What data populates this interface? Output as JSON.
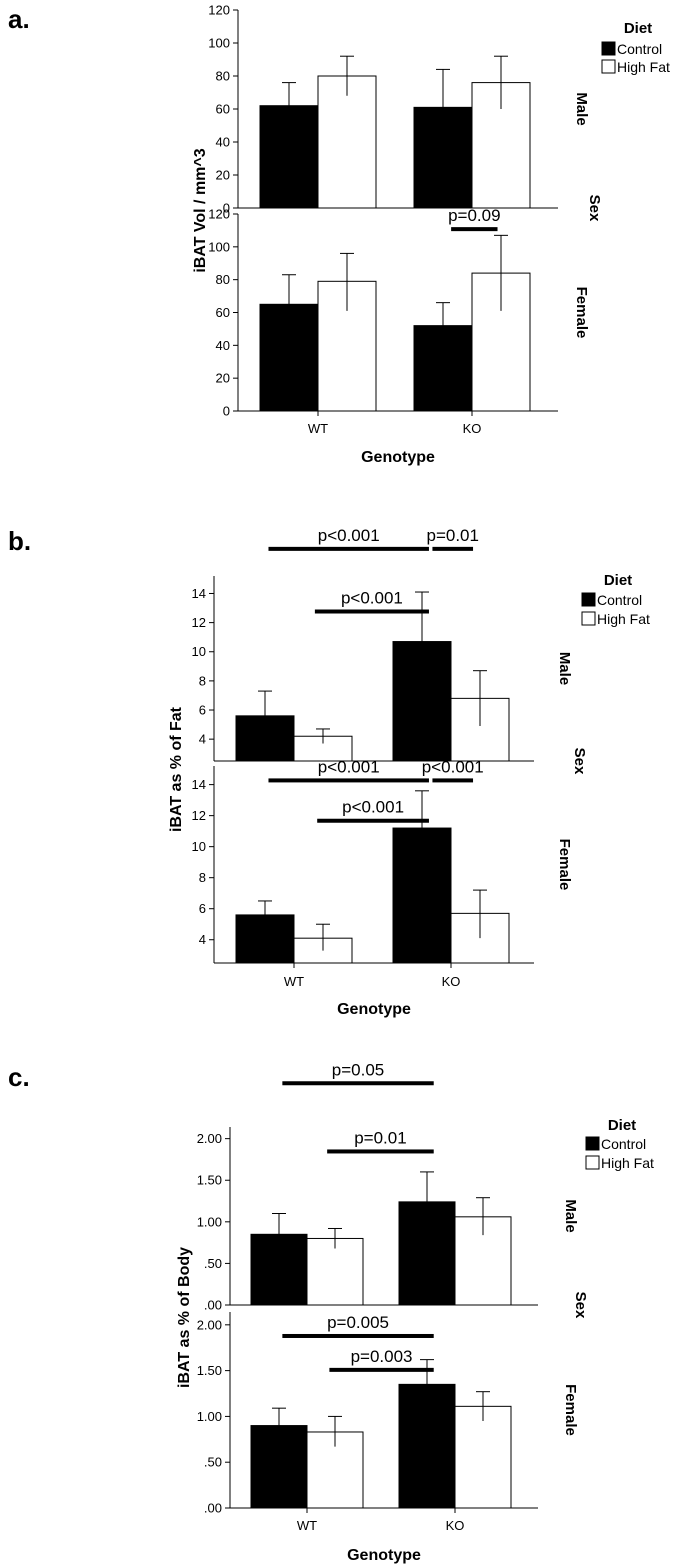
{
  "chart_data": [
    {
      "type": "bar",
      "panel_label": "a.",
      "categories": [
        "WT",
        "KO"
      ],
      "xlabel": "Genotype",
      "ylabel": "iBAT Vol / mm^3",
      "facet_title": "Sex",
      "legend": {
        "title": "Diet",
        "entries": [
          "Control",
          "High Fat"
        ],
        "placement": "top-right"
      },
      "series_colors": [
        "#000000",
        "#ffffff"
      ],
      "facets": [
        {
          "label": "Male",
          "ylim": [
            0,
            120
          ],
          "ticks": [
            0,
            20,
            40,
            60,
            80,
            100,
            120
          ],
          "tick_labels": [
            "0",
            "20",
            "40",
            "60",
            "80",
            "100",
            "120"
          ],
          "series": [
            {
              "name": "Control",
              "values": [
                62,
                61
              ],
              "err": [
                [
                  52,
                  76
                ],
                [
                  42,
                  84
                ]
              ]
            },
            {
              "name": "High Fat",
              "values": [
                80,
                76
              ],
              "err": [
                [
                  68,
                  92
                ],
                [
                  60,
                  92
                ]
              ]
            }
          ],
          "annotations": []
        },
        {
          "label": "Female",
          "ylim": [
            0,
            120
          ],
          "ticks": [
            0,
            20,
            40,
            60,
            80,
            100,
            120
          ],
          "tick_labels": [
            "0",
            "20",
            "40",
            "60",
            "80",
            "100",
            "120"
          ],
          "series": [
            {
              "name": "Control",
              "values": [
                65,
                52
              ],
              "err": [
                [
                  46,
                  83
                ],
                [
                  38,
                  66
                ]
              ]
            },
            {
              "name": "High Fat",
              "values": [
                79,
                84
              ],
              "err": [
                [
                  61,
                  96
                ],
                [
                  61,
                  107
                ]
              ]
            }
          ],
          "annotations": [
            {
              "text": "p=0.09",
              "x1": [
                1,
                -0.18
              ],
              "x2": [
                1,
                0.22
              ],
              "y": 112
            }
          ]
        }
      ]
    },
    {
      "type": "bar",
      "panel_label": "b.",
      "categories": [
        "WT",
        "KO"
      ],
      "xlabel": "Genotype",
      "ylabel": "iBAT as % of Fat",
      "facet_title": "Sex",
      "legend": {
        "title": "Diet",
        "entries": [
          "Control",
          "High Fat"
        ],
        "placement": "top-right"
      },
      "series_colors": [
        "#000000",
        "#ffffff"
      ],
      "facets": [
        {
          "label": "Male",
          "ylim": [
            2.5,
            15.2
          ],
          "ticks": [
            4,
            6,
            8,
            10,
            12,
            14
          ],
          "tick_labels": [
            "4",
            "6",
            "8",
            "10",
            "12",
            "14"
          ],
          "series": [
            {
              "name": "Control",
              "values": [
                5.6,
                10.7
              ],
              "err": [
                [
                  4.0,
                  7.3
                ],
                [
                  7.3,
                  14.1
                ]
              ]
            },
            {
              "name": "High Fat",
              "values": [
                4.2,
                6.8
              ],
              "err": [
                [
                  3.7,
                  4.7
                ],
                [
                  4.9,
                  8.7
                ]
              ]
            }
          ],
          "annotations": [
            {
              "text": "p<0.001",
              "x1": [
                0,
                -0.22
              ],
              "x2": [
                1,
                -0.19
              ],
              "y": 17.2
            },
            {
              "text": "p=0.01",
              "x1": [
                1,
                -0.16
              ],
              "x2": [
                1,
                0.19
              ],
              "y": 17.2
            },
            {
              "text": "p<0.001",
              "x1": [
                0,
                0.18
              ],
              "x2": [
                1,
                -0.19
              ],
              "y": 12.9
            }
          ]
        },
        {
          "label": "Female",
          "ylim": [
            2.5,
            15.2
          ],
          "ticks": [
            4,
            6,
            8,
            10,
            12,
            14
          ],
          "tick_labels": [
            "4",
            "6",
            "8",
            "10",
            "12",
            "14"
          ],
          "series": [
            {
              "name": "Control",
              "values": [
                5.6,
                11.2
              ],
              "err": [
                [
                  4.5,
                  6.5
                ],
                [
                  8.7,
                  13.6
                ]
              ]
            },
            {
              "name": "High Fat",
              "values": [
                4.1,
                5.7
              ],
              "err": [
                [
                  3.3,
                  5.0
                ],
                [
                  4.1,
                  7.2
                ]
              ]
            }
          ],
          "annotations": [
            {
              "text": "p<0.001",
              "x1": [
                0,
                -0.22
              ],
              "x2": [
                1,
                -0.19
              ],
              "y": 14.4
            },
            {
              "text": "p<0.001",
              "x1": [
                1,
                -0.16
              ],
              "x2": [
                1,
                0.19
              ],
              "y": 14.4
            },
            {
              "text": "p<0.001",
              "x1": [
                0,
                0.2
              ],
              "x2": [
                1,
                -0.19
              ],
              "y": 11.8
            }
          ]
        }
      ]
    },
    {
      "type": "bar",
      "panel_label": "c.",
      "categories": [
        "WT",
        "KO"
      ],
      "xlabel": "Genotype",
      "ylabel": "iBAT as % of Body",
      "facet_title": "Sex",
      "legend": {
        "title": "Diet",
        "entries": [
          "Control",
          "High Fat"
        ],
        "placement": "top-right"
      },
      "series_colors": [
        "#000000",
        "#ffffff"
      ],
      "facets": [
        {
          "label": "Male",
          "ylim": [
            0,
            2.14
          ],
          "ticks": [
            0,
            0.5,
            1.0,
            1.5,
            2.0
          ],
          "tick_labels": [
            ".00",
            ".50",
            "1.00",
            "1.50",
            "2.00"
          ],
          "series": [
            {
              "name": "Control",
              "values": [
                0.85,
                1.24
              ],
              "err": [
                [
                  0.55,
                  1.1
                ],
                [
                  0.85,
                  1.6
                ]
              ]
            },
            {
              "name": "High Fat",
              "values": [
                0.8,
                1.06
              ],
              "err": [
                [
                  0.68,
                  0.92
                ],
                [
                  0.84,
                  1.29
                ]
              ]
            }
          ],
          "annotations": [
            {
              "text": "p=0.05",
              "x1": [
                0,
                -0.22
              ],
              "x2": [
                1,
                -0.19
              ],
              "y": 2.69
            },
            {
              "text": "p=0.01",
              "x1": [
                0,
                0.18
              ],
              "x2": [
                1,
                -0.19
              ],
              "y": 1.87
            }
          ]
        },
        {
          "label": "Female",
          "ylim": [
            0,
            2.14
          ],
          "ticks": [
            0,
            0.5,
            1.0,
            1.5,
            2.0
          ],
          "tick_labels": [
            ".00",
            ".50",
            "1.00",
            "1.50",
            "2.00"
          ],
          "series": [
            {
              "name": "Control",
              "values": [
                0.9,
                1.35
              ],
              "err": [
                [
                  0.7,
                  1.09
                ],
                [
                  1.08,
                  1.62
                ]
              ]
            },
            {
              "name": "High Fat",
              "values": [
                0.83,
                1.11
              ],
              "err": [
                [
                  0.67,
                  1.0
                ],
                [
                  0.95,
                  1.27
                ]
              ]
            }
          ],
          "annotations": [
            {
              "text": "p=0.005",
              "x1": [
                0,
                -0.22
              ],
              "x2": [
                1,
                -0.19
              ],
              "y": 1.9
            },
            {
              "text": "p=0.003",
              "x1": [
                0,
                0.2
              ],
              "x2": [
                1,
                -0.19
              ],
              "y": 1.53
            }
          ]
        }
      ]
    }
  ]
}
